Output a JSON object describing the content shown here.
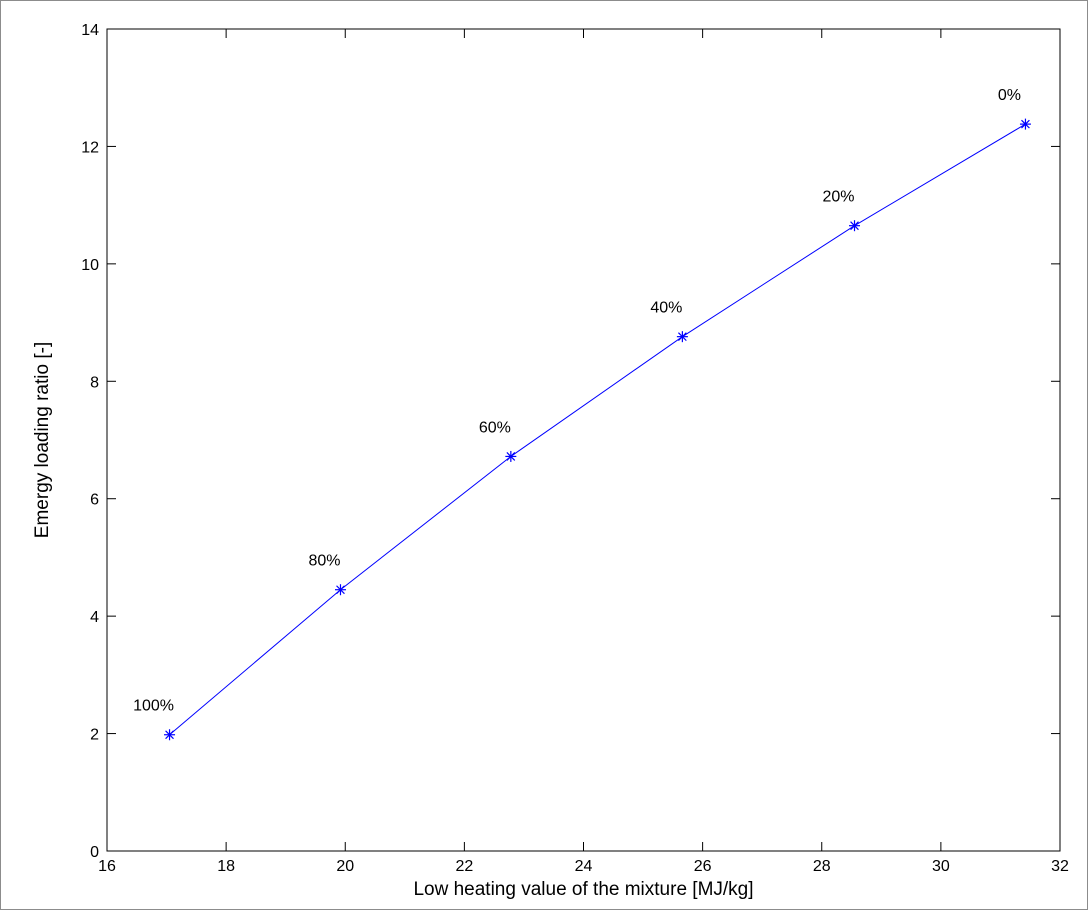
{
  "chart_data": {
    "type": "line",
    "title": "",
    "xlabel": "Low heating value of the mixture [MJ/kg]",
    "ylabel": "Emergy loading ratio [-]",
    "xlim": [
      16,
      32
    ],
    "ylim": [
      0,
      14
    ],
    "xticks": [
      16,
      18,
      20,
      22,
      24,
      26,
      28,
      30,
      32
    ],
    "yticks": [
      0,
      2,
      4,
      6,
      8,
      10,
      12,
      14
    ],
    "grid": false,
    "marker": "asterisk",
    "line_color": "#0000ff",
    "points": [
      {
        "x": 17.05,
        "y": 1.98,
        "label": "100%"
      },
      {
        "x": 19.92,
        "y": 4.45,
        "label": "80%"
      },
      {
        "x": 22.78,
        "y": 6.72,
        "label": "60%"
      },
      {
        "x": 25.66,
        "y": 8.76,
        "label": "40%"
      },
      {
        "x": 28.55,
        "y": 10.65,
        "label": "20%"
      },
      {
        "x": 31.42,
        "y": 12.38,
        "label": "0%"
      }
    ]
  }
}
